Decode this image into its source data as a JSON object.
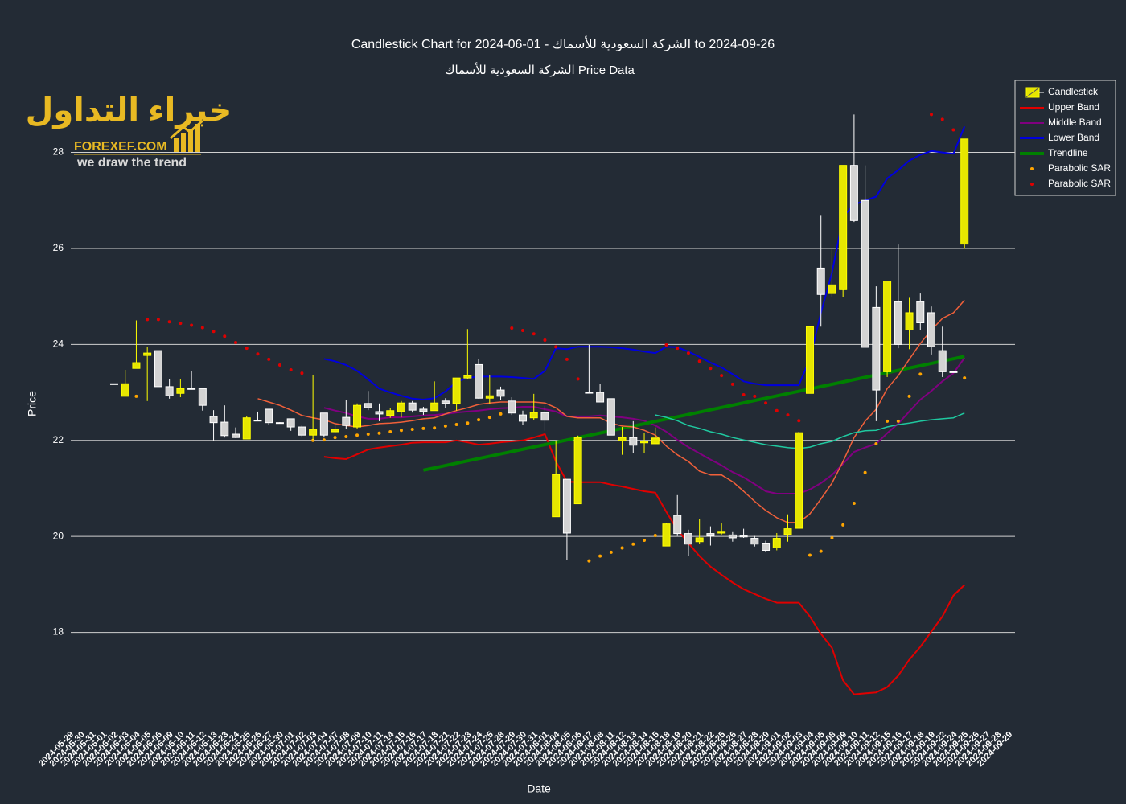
{
  "chart_data": {
    "type": "candlestick",
    "title": "Candlestick Chart for الشركة السعودية للأسماك - 01-06-2024 to 2024-09-26",
    "subtitle": "الشركة السعودية للأسماك Price Data",
    "x_label": "Date",
    "y_label": "Price",
    "ylim": [
      16.1,
      29.5
    ],
    "yticks": [
      18,
      20,
      22,
      24,
      26,
      28
    ],
    "grid": true,
    "legend": "upper right",
    "categories": [
      "2024-05-29",
      "2024-05-30",
      "2024-05-31",
      "2024-06-01",
      "2024-06-02",
      "2024-06-03",
      "2024-06-04",
      "2024-06-05",
      "2024-06-06",
      "2024-06-09",
      "2024-06-10",
      "2024-06-11",
      "2024-06-12",
      "2024-06-13",
      "2024-06-23",
      "2024-06-24",
      "2024-06-25",
      "2024-06-26",
      "2024-06-27",
      "2024-06-30",
      "2024-07-01",
      "2024-07-02",
      "2024-07-03",
      "2024-07-04",
      "2024-07-07",
      "2024-07-08",
      "2024-07-09",
      "2024-07-10",
      "2024-07-11",
      "2024-07-14",
      "2024-07-15",
      "2024-07-16",
      "2024-07-17",
      "2024-07-18",
      "2024-07-21",
      "2024-07-22",
      "2024-07-23",
      "2024-07-24",
      "2024-07-25",
      "2024-07-28",
      "2024-07-29",
      "2024-07-30",
      "2024-07-31",
      "2024-08-01",
      "2024-08-04",
      "2024-08-05",
      "2024-08-06",
      "2024-08-07",
      "2024-08-08",
      "2024-08-11",
      "2024-08-12",
      "2024-08-13",
      "2024-08-14",
      "2024-08-15",
      "2024-08-18",
      "2024-08-19",
      "2024-08-20",
      "2024-08-21",
      "2024-08-22",
      "2024-08-25",
      "2024-08-26",
      "2024-08-27",
      "2024-08-28",
      "2024-08-29",
      "2024-09-01",
      "2024-09-02",
      "2024-09-03",
      "2024-09-04",
      "2024-09-05",
      "2024-09-08",
      "2024-09-09",
      "2024-09-10",
      "2024-09-11",
      "2024-09-12",
      "2024-09-15",
      "2024-09-16",
      "2024-09-17",
      "2024-09-18",
      "2024-09-19",
      "2024-09-22",
      "2024-09-24",
      "2024-09-25",
      "2024-09-26",
      "2024-09-27",
      "2024-09-28",
      "2024-09-29"
    ],
    "series": [
      {
        "name": "Candlestick",
        "type": "candlestick",
        "increasing_color": "#e6e600",
        "decreasing_color": "#d3d3d3",
        "open": [
          null,
          null,
          null,
          null,
          23.18,
          22.92,
          23.5,
          23.77,
          23.87,
          23.12,
          22.98,
          23.08,
          23.08,
          22.5,
          22.38,
          22.13,
          22.03,
          22.42,
          22.65,
          22.37,
          22.45,
          22.28,
          22.11,
          22.57,
          22.18,
          22.48,
          22.28,
          22.77,
          22.6,
          22.52,
          22.6,
          22.78,
          22.65,
          22.62,
          22.82,
          22.77,
          23.3,
          23.58,
          22.88,
          23.05,
          22.82,
          22.53,
          22.47,
          22.58,
          20.41,
          21.19,
          20.68,
          23.0,
          23.0,
          22.87,
          21.99,
          22.06,
          21.95,
          21.93,
          19.8,
          20.44,
          20.06,
          19.89,
          20.06,
          20.07,
          20.03,
          20.01,
          19.96,
          19.86,
          19.76,
          20.04,
          20.17,
          22.98,
          25.59,
          25.06,
          25.14,
          27.73,
          27.0,
          24.77,
          23.43,
          24.89,
          24.3,
          24.89,
          24.66,
          23.87,
          23.43,
          26.09,
          null,
          null,
          null,
          null
        ],
        "high": [
          null,
          null,
          null,
          null,
          23.18,
          23.47,
          24.5,
          23.95,
          23.87,
          23.27,
          23.27,
          23.45,
          23.08,
          22.63,
          22.73,
          22.27,
          22.5,
          22.6,
          22.65,
          22.38,
          22.45,
          22.31,
          23.37,
          22.57,
          22.31,
          22.85,
          22.77,
          23.03,
          22.77,
          22.68,
          22.82,
          22.82,
          22.7,
          23.23,
          22.88,
          23.3,
          24.32,
          23.7,
          23.37,
          23.12,
          22.9,
          22.62,
          22.97,
          22.72,
          21.98,
          21.19,
          22.1,
          23.99,
          23.18,
          22.87,
          22.28,
          22.4,
          22.15,
          22.27,
          20.27,
          20.86,
          20.14,
          20.36,
          20.21,
          20.27,
          20.09,
          20.16,
          20.01,
          19.91,
          20.07,
          20.46,
          22.18,
          24.37,
          26.68,
          25.98,
          27.73,
          28.79,
          27.73,
          25.21,
          25.32,
          26.08,
          24.97,
          25.06,
          24.79,
          24.37,
          23.43,
          28.28,
          null,
          null,
          null,
          null
        ],
        "low": [
          null,
          null,
          null,
          null,
          23.18,
          22.92,
          23.5,
          22.82,
          23.12,
          22.87,
          22.9,
          23.08,
          22.62,
          22.0,
          22.06,
          22.05,
          22.03,
          22.4,
          22.32,
          22.36,
          22.2,
          22.06,
          22.01,
          22.06,
          22.15,
          22.23,
          22.23,
          22.63,
          22.4,
          22.47,
          22.48,
          22.58,
          22.53,
          22.62,
          22.68,
          22.62,
          23.27,
          22.87,
          22.77,
          22.85,
          22.53,
          22.32,
          22.42,
          22.2,
          20.41,
          19.5,
          20.68,
          22.98,
          22.8,
          22.11,
          21.7,
          21.73,
          21.73,
          21.93,
          19.8,
          20.01,
          19.6,
          19.84,
          19.81,
          20.04,
          19.89,
          19.97,
          19.79,
          19.67,
          19.71,
          19.89,
          20.17,
          22.98,
          24.37,
          24.99,
          24.99,
          26.55,
          23.94,
          22.4,
          23.32,
          23.92,
          23.9,
          24.3,
          23.79,
          23.32,
          23.43,
          25.99,
          null,
          null,
          null,
          null
        ],
        "close": [
          null,
          null,
          null,
          null,
          23.18,
          23.18,
          23.62,
          23.82,
          23.12,
          22.93,
          23.08,
          23.08,
          22.73,
          22.37,
          22.1,
          22.06,
          22.47,
          22.42,
          22.37,
          22.37,
          22.28,
          22.11,
          22.23,
          22.11,
          22.23,
          22.31,
          22.73,
          22.68,
          22.55,
          22.62,
          22.78,
          22.63,
          22.6,
          22.78,
          22.77,
          23.3,
          23.35,
          22.88,
          22.93,
          22.92,
          22.57,
          22.4,
          22.58,
          22.42,
          21.29,
          20.07,
          22.06,
          23.0,
          22.8,
          22.11,
          22.06,
          21.9,
          21.98,
          22.05,
          20.26,
          20.06,
          19.84,
          19.97,
          20.01,
          20.09,
          19.97,
          19.99,
          19.84,
          19.71,
          19.96,
          20.16,
          22.16,
          24.37,
          25.04,
          25.24,
          27.73,
          26.58,
          23.94,
          23.05,
          25.32,
          24.0,
          24.66,
          24.45,
          23.95,
          23.43,
          23.43,
          28.28,
          null,
          null,
          null,
          null
        ]
      },
      {
        "name": "Upper Band",
        "type": "line",
        "color": "#e00000",
        "width": 2,
        "values": [
          null,
          null,
          null,
          null,
          null,
          null,
          null,
          null,
          null,
          null,
          null,
          null,
          null,
          null,
          null,
          null,
          null,
          null,
          null,
          null,
          null,
          null,
          null,
          21.66,
          21.63,
          21.61,
          21.71,
          21.81,
          21.85,
          21.88,
          21.91,
          21.95,
          21.96,
          21.96,
          21.96,
          22.0,
          21.96,
          21.91,
          21.93,
          21.96,
          21.98,
          22.0,
          22.06,
          22.13,
          21.56,
          21.14,
          21.13,
          21.13,
          21.13,
          21.08,
          21.04,
          20.99,
          20.94,
          20.91,
          20.51,
          20.14,
          19.86,
          19.59,
          19.37,
          19.2,
          19.04,
          18.9,
          18.8,
          18.7,
          18.62,
          18.62,
          18.62,
          18.33,
          17.97,
          17.68,
          17.0,
          16.71,
          16.73,
          16.75,
          16.86,
          17.1,
          17.43,
          17.7,
          18.02,
          18.33,
          18.77,
          18.99,
          null,
          null,
          null,
          null
        ]
      },
      {
        "name": "Middle Band",
        "type": "line",
        "color": "#800080",
        "width": 2,
        "values": [
          null,
          null,
          null,
          null,
          null,
          null,
          null,
          null,
          null,
          null,
          null,
          null,
          null,
          null,
          null,
          null,
          null,
          null,
          null,
          null,
          null,
          null,
          null,
          22.68,
          22.62,
          22.57,
          22.5,
          22.45,
          22.45,
          22.48,
          22.48,
          22.5,
          22.52,
          22.53,
          22.55,
          22.58,
          22.6,
          22.62,
          22.65,
          22.67,
          22.68,
          22.7,
          22.7,
          22.65,
          22.6,
          22.5,
          22.5,
          22.5,
          22.52,
          22.5,
          22.48,
          22.45,
          22.41,
          22.31,
          22.18,
          22.01,
          21.86,
          21.73,
          21.6,
          21.48,
          21.34,
          21.23,
          21.09,
          20.94,
          20.89,
          20.89,
          20.89,
          20.98,
          21.11,
          21.28,
          21.51,
          21.76,
          21.85,
          21.93,
          22.15,
          22.35,
          22.6,
          22.85,
          23.03,
          23.23,
          23.4,
          23.72,
          null,
          null,
          null,
          null
        ]
      },
      {
        "name": "Lower Band",
        "type": "line",
        "color": "#0000dd",
        "width": 2,
        "values": [
          null,
          null,
          null,
          null,
          null,
          null,
          null,
          null,
          null,
          null,
          null,
          null,
          null,
          null,
          null,
          null,
          null,
          null,
          null,
          null,
          null,
          null,
          null,
          23.7,
          23.65,
          23.57,
          23.45,
          23.27,
          23.08,
          23.0,
          22.93,
          22.87,
          22.85,
          22.88,
          23.02,
          23.22,
          23.3,
          23.33,
          23.33,
          23.33,
          23.32,
          23.3,
          23.28,
          23.45,
          23.92,
          23.9,
          23.95,
          23.95,
          23.95,
          23.94,
          23.92,
          23.89,
          23.85,
          23.82,
          23.95,
          23.94,
          23.85,
          23.74,
          23.62,
          23.52,
          23.38,
          23.23,
          23.18,
          23.15,
          23.15,
          23.15,
          23.15,
          23.7,
          24.66,
          25.49,
          26.66,
          26.91,
          27.0,
          27.08,
          27.46,
          27.63,
          27.83,
          27.95,
          28.03,
          28.0,
          27.97,
          28.54,
          null,
          null,
          null,
          null
        ]
      },
      {
        "name": "Trendline",
        "type": "line",
        "color": "#008000",
        "width": 4,
        "x": [
          "2024-07-17",
          "2024-09-25"
        ],
        "values": [
          21.38,
          23.75
        ]
      },
      {
        "name": "Parabolic SAR",
        "type": "markers",
        "color": "#ffa500",
        "values": [
          null,
          null,
          null,
          null,
          null,
          null,
          22.92,
          null,
          null,
          null,
          null,
          null,
          null,
          null,
          null,
          null,
          null,
          null,
          null,
          null,
          null,
          null,
          22.0,
          22.01,
          22.06,
          22.08,
          22.11,
          22.13,
          22.15,
          22.18,
          22.21,
          22.23,
          22.25,
          22.26,
          22.3,
          22.33,
          22.36,
          22.43,
          22.48,
          22.55,
          null,
          null,
          null,
          null,
          null,
          null,
          null,
          19.49,
          19.59,
          19.67,
          19.76,
          19.84,
          19.92,
          20.02,
          null,
          null,
          null,
          null,
          null,
          null,
          null,
          null,
          null,
          null,
          null,
          null,
          null,
          19.61,
          19.69,
          19.97,
          20.24,
          20.69,
          21.33,
          21.93,
          22.4,
          22.4,
          22.92,
          23.38,
          null,
          null,
          null,
          23.3,
          null,
          null,
          null,
          null
        ]
      },
      {
        "name": "Parabolic SAR",
        "type": "markers",
        "color": "#e00000",
        "values": [
          null,
          null,
          null,
          null,
          null,
          null,
          null,
          24.52,
          24.52,
          24.47,
          24.44,
          24.4,
          24.35,
          24.27,
          24.17,
          24.04,
          23.92,
          23.8,
          23.69,
          23.57,
          23.47,
          23.4,
          null,
          null,
          null,
          null,
          null,
          null,
          null,
          null,
          null,
          null,
          null,
          null,
          null,
          null,
          null,
          null,
          null,
          null,
          24.34,
          24.29,
          24.22,
          24.09,
          23.95,
          23.69,
          23.28,
          null,
          null,
          null,
          null,
          null,
          null,
          null,
          23.99,
          23.92,
          23.82,
          23.65,
          23.5,
          23.35,
          23.17,
          22.95,
          22.92,
          22.78,
          22.62,
          22.53,
          22.41,
          null,
          null,
          null,
          null,
          null,
          null,
          null,
          null,
          null,
          null,
          null,
          28.79,
          28.69,
          28.47,
          null,
          null,
          null,
          null,
          null
        ]
      },
      {
        "type": "line",
        "color": "#f0603a",
        "width": 1.5,
        "values": [
          null,
          null,
          null,
          null,
          null,
          null,
          null,
          null,
          null,
          null,
          null,
          null,
          null,
          null,
          null,
          null,
          null,
          22.87,
          22.8,
          22.73,
          22.63,
          22.52,
          22.47,
          22.43,
          22.35,
          22.31,
          22.28,
          22.31,
          22.35,
          22.36,
          22.38,
          22.41,
          22.45,
          22.47,
          22.55,
          22.62,
          22.68,
          22.75,
          22.78,
          22.8,
          22.8,
          22.8,
          22.8,
          22.78,
          22.68,
          22.5,
          22.47,
          22.47,
          22.47,
          22.36,
          22.3,
          22.28,
          22.21,
          22.11,
          21.88,
          21.7,
          21.56,
          21.36,
          21.28,
          21.28,
          21.14,
          20.94,
          20.73,
          20.54,
          20.39,
          20.29,
          20.29,
          20.47,
          20.78,
          21.11,
          21.56,
          22.06,
          22.4,
          22.65,
          23.08,
          23.35,
          23.69,
          24.02,
          24.3,
          24.54,
          24.66,
          24.92,
          null,
          null,
          null,
          null
        ]
      },
      {
        "type": "line",
        "color": "#1fc9a0",
        "width": 1.5,
        "values": [
          null,
          null,
          null,
          null,
          null,
          null,
          null,
          null,
          null,
          null,
          null,
          null,
          null,
          null,
          null,
          null,
          null,
          null,
          null,
          null,
          null,
          null,
          null,
          null,
          null,
          null,
          null,
          null,
          null,
          null,
          null,
          null,
          null,
          null,
          null,
          null,
          null,
          null,
          null,
          null,
          null,
          null,
          null,
          null,
          null,
          null,
          null,
          null,
          null,
          null,
          null,
          null,
          null,
          22.53,
          22.48,
          22.41,
          22.31,
          22.25,
          22.18,
          22.13,
          22.06,
          22.01,
          21.96,
          21.91,
          21.88,
          21.85,
          21.83,
          21.86,
          21.93,
          21.98,
          22.08,
          22.16,
          22.2,
          22.21,
          22.28,
          22.33,
          22.36,
          22.4,
          22.43,
          22.45,
          22.47,
          22.57,
          null,
          null,
          null,
          null
        ]
      }
    ]
  },
  "logo": {
    "arabic": "خبراء التداول",
    "site": "FOREXEF.COM",
    "tagline": "we draw the trend"
  }
}
